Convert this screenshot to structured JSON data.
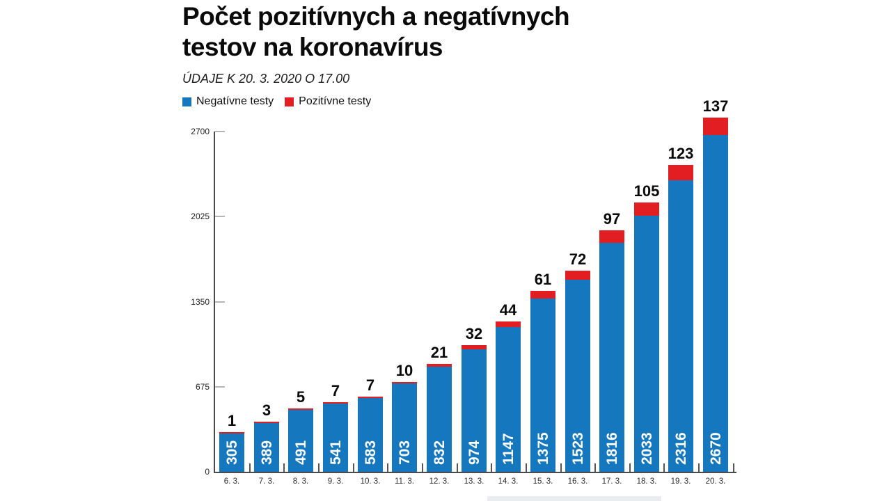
{
  "header": {
    "title_line1": "Počet pozitívnych a negatívnych",
    "title_line2": "testov na koronavírus",
    "subtitle": "ÚDAJE K 20. 3. 2020 O 17.00"
  },
  "legend": [
    {
      "label": "Negatívne testy",
      "color": "#1577be"
    },
    {
      "label": "Pozitívne testy",
      "color": "#e31e23"
    }
  ],
  "colors": {
    "negative": "#1577be",
    "positive": "#e31e23",
    "axis": "#4a4a4a",
    "bar_value_text": "#ffffff",
    "positive_value_text": "#0a0a0a"
  },
  "chart_data": {
    "type": "bar",
    "stacked": true,
    "title": "Počet pozitívnych a negatívnych testov na koronavírus",
    "subtitle": "ÚDAJE K 20. 3. 2020 O 17.00",
    "legend_position": "top-left",
    "grid": false,
    "categories": [
      "6. 3.",
      "7. 3.",
      "8. 3.",
      "9. 3.",
      "10. 3.",
      "11. 3.",
      "12. 3.",
      "13. 3.",
      "14. 3.",
      "15. 3.",
      "16. 3.",
      "17. 3.",
      "18. 3.",
      "19. 3.",
      "20. 3."
    ],
    "series": [
      {
        "name": "Negatívne testy",
        "color": "#1577be",
        "values": [
          305,
          389,
          491,
          541,
          583,
          703,
          832,
          974,
          1147,
          1375,
          1523,
          1816,
          2033,
          2316,
          2670
        ]
      },
      {
        "name": "Pozitívne testy",
        "color": "#e31e23",
        "values": [
          1,
          3,
          5,
          7,
          7,
          10,
          21,
          32,
          44,
          61,
          72,
          97,
          105,
          123,
          137
        ]
      }
    ],
    "y_ticks": [
      0,
      675,
      1350,
      2025,
      2700
    ],
    "ylim": [
      0,
      2700
    ],
    "xlabel": "",
    "ylabel": ""
  }
}
